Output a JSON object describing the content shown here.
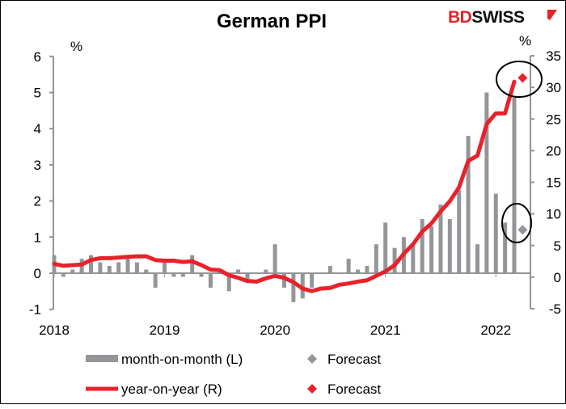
{
  "chart_data": {
    "type": "bar+line",
    "title": "German PPI",
    "logo": {
      "text_red": "BD",
      "text_black": "SWISS",
      "colors": {
        "red": "#e8222b",
        "black": "#111111"
      }
    },
    "left_axis": {
      "unit": "%",
      "ylim": [
        -1,
        6
      ],
      "ticks": [
        "-1",
        "0",
        "1",
        "2",
        "3",
        "4",
        "5",
        "6"
      ]
    },
    "right_axis": {
      "unit": "%",
      "ylim": [
        -5,
        35
      ],
      "ticks": [
        "-5",
        "0",
        "5",
        "10",
        "15",
        "20",
        "25",
        "30",
        "35"
      ]
    },
    "x_axis": {
      "ticks": [
        "2018",
        "2019",
        "2020",
        "2021",
        "2022"
      ],
      "start": "2018-01",
      "end": "2022-04"
    },
    "months": [
      "2018-01",
      "2018-02",
      "2018-03",
      "2018-04",
      "2018-05",
      "2018-06",
      "2018-07",
      "2018-08",
      "2018-09",
      "2018-10",
      "2018-11",
      "2018-12",
      "2019-01",
      "2019-02",
      "2019-03",
      "2019-04",
      "2019-05",
      "2019-06",
      "2019-07",
      "2019-08",
      "2019-09",
      "2019-10",
      "2019-11",
      "2019-12",
      "2020-01",
      "2020-02",
      "2020-03",
      "2020-04",
      "2020-05",
      "2020-06",
      "2020-07",
      "2020-08",
      "2020-09",
      "2020-10",
      "2020-11",
      "2020-12",
      "2021-01",
      "2021-02",
      "2021-03",
      "2021-04",
      "2021-05",
      "2021-06",
      "2021-07",
      "2021-08",
      "2021-09",
      "2021-10",
      "2021-11",
      "2021-12",
      "2022-01",
      "2022-02",
      "2022-03"
    ],
    "series": [
      {
        "name": "month-on-month (L)",
        "type": "bar",
        "axis": "left",
        "color": "#939598",
        "values": [
          0.5,
          -0.1,
          0.1,
          0.4,
          0.5,
          0.3,
          0.2,
          0.3,
          0.4,
          0.3,
          0.1,
          -0.4,
          0.4,
          -0.1,
          -0.1,
          0.5,
          -0.1,
          -0.4,
          0.1,
          -0.5,
          0.1,
          -0.2,
          0.0,
          0.1,
          0.8,
          -0.4,
          -0.8,
          -0.7,
          -0.4,
          0.0,
          0.2,
          0.0,
          0.4,
          0.1,
          0.2,
          0.8,
          1.4,
          0.7,
          1.0,
          0.8,
          1.5,
          1.3,
          1.9,
          1.5,
          2.3,
          3.8,
          0.8,
          5.0,
          2.2,
          1.4,
          4.9
        ]
      },
      {
        "name": "year-on-year (R)",
        "type": "line",
        "axis": "right",
        "color": "#e8222b",
        "values": [
          2.1,
          1.8,
          1.9,
          2.0,
          2.7,
          3.0,
          3.0,
          3.1,
          3.2,
          3.3,
          3.3,
          2.7,
          2.6,
          2.6,
          2.4,
          2.5,
          1.9,
          1.2,
          1.1,
          0.3,
          -0.1,
          -0.6,
          -0.7,
          -0.2,
          0.2,
          -0.1,
          -0.8,
          -1.8,
          -2.2,
          -1.8,
          -1.7,
          -1.2,
          -1.0,
          -0.7,
          -0.5,
          0.2,
          0.9,
          1.9,
          3.7,
          5.2,
          7.2,
          8.5,
          10.4,
          12.0,
          14.2,
          18.4,
          19.2,
          24.2,
          25.9,
          25.9,
          30.9
        ]
      }
    ],
    "forecasts": [
      {
        "name": "Forecast",
        "series": "month-on-month (L)",
        "month": "2022-04",
        "value": 1.2,
        "color": "#939598"
      },
      {
        "name": "Forecast",
        "series": "year-on-year (R)",
        "month": "2022-04",
        "value": 31.5,
        "color": "#e8222b"
      }
    ],
    "legend": {
      "placement": "bottom",
      "items": [
        {
          "label": "month-on-month (L)",
          "marker": "bar",
          "color": "#939598"
        },
        {
          "label": "Forecast",
          "marker": "diamond",
          "color": "#939598"
        },
        {
          "label": "year-on-year (R)",
          "marker": "line",
          "color": "#e8222b"
        },
        {
          "label": "Forecast",
          "marker": "diamond",
          "color": "#e8222b"
        }
      ]
    },
    "annotations": [
      "circle around yoy forecast",
      "circle around mom forecast"
    ]
  }
}
